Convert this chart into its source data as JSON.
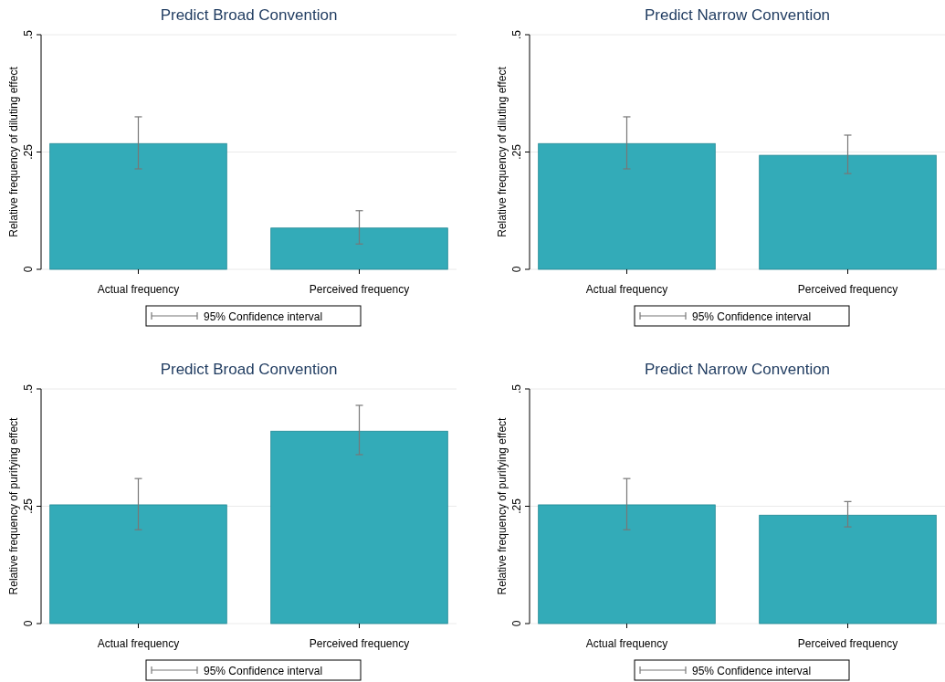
{
  "chart_data": [
    {
      "type": "bar",
      "title": "Predict Broad Convention",
      "ylabel": "Relative frequency of diluting effect",
      "categories": [
        "Actual frequency",
        "Perceived frequency"
      ],
      "values": [
        0.268,
        0.088
      ],
      "errors": [
        [
          0.214,
          0.325
        ],
        [
          0.054,
          0.125
        ]
      ],
      "color": "#33abb8",
      "ylim": [
        0,
        0.5
      ],
      "yticks": [
        {
          "value": 0,
          "label": "0"
        },
        {
          "value": 0.25,
          "label": ".25"
        },
        {
          "value": 0.5,
          "label": ".5"
        }
      ],
      "grid": "y",
      "annotations": [
        "95% Confidence interval"
      ]
    },
    {
      "type": "bar",
      "title": "Predict Narrow Convention",
      "ylabel": "Relative frequency of diluting effect",
      "categories": [
        "Actual frequency",
        "Perceived frequency"
      ],
      "values": [
        0.268,
        0.243
      ],
      "errors": [
        [
          0.214,
          0.325
        ],
        [
          0.204,
          0.286
        ]
      ],
      "color": "#33abb8",
      "ylim": [
        0,
        0.5
      ],
      "yticks": [
        {
          "value": 0,
          "label": "0"
        },
        {
          "value": 0.25,
          "label": ".25"
        },
        {
          "value": 0.5,
          "label": ".5"
        }
      ],
      "grid": "y",
      "annotations": [
        "95% Confidence interval"
      ]
    },
    {
      "type": "bar",
      "title": "Predict Broad Convention",
      "ylabel": "Relative frequency of purifying effect",
      "categories": [
        "Actual frequency",
        "Perceived frequency"
      ],
      "values": [
        0.253,
        0.41
      ],
      "errors": [
        [
          0.2,
          0.309
        ],
        [
          0.36,
          0.465
        ]
      ],
      "color": "#33abb8",
      "ylim": [
        0,
        0.5
      ],
      "yticks": [
        {
          "value": 0,
          "label": "0"
        },
        {
          "value": 0.25,
          "label": ".25"
        },
        {
          "value": 0.5,
          "label": ".5"
        }
      ],
      "grid": "y",
      "annotations": [
        "95% Confidence interval"
      ]
    },
    {
      "type": "bar",
      "title": "Predict Narrow Convention",
      "ylabel": "Relative frequency of purifying effect",
      "categories": [
        "Actual frequency",
        "Perceived frequency"
      ],
      "values": [
        0.253,
        0.231
      ],
      "errors": [
        [
          0.2,
          0.309
        ],
        [
          0.206,
          0.26
        ]
      ],
      "color": "#33abb8",
      "ylim": [
        0,
        0.5
      ],
      "yticks": [
        {
          "value": 0,
          "label": "0"
        },
        {
          "value": 0.25,
          "label": ".25"
        },
        {
          "value": 0.5,
          "label": ".5"
        }
      ],
      "grid": "y",
      "annotations": [
        "95% Confidence interval"
      ]
    }
  ]
}
